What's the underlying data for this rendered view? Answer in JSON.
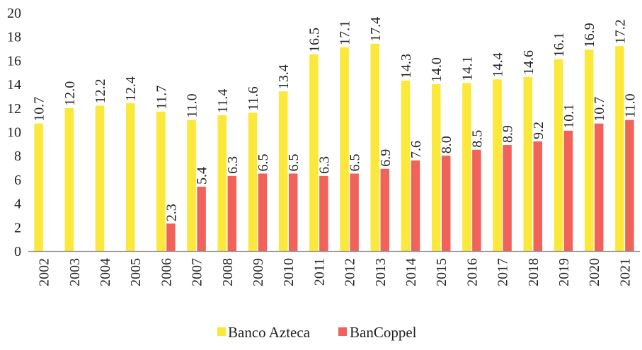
{
  "chart_data": {
    "type": "bar",
    "title": "",
    "xlabel": "",
    "ylabel": "",
    "ylim": [
      0,
      20
    ],
    "yticks": [
      0,
      2,
      4,
      6,
      8,
      10,
      12,
      14,
      16,
      18,
      20
    ],
    "categories": [
      "2002",
      "2003",
      "2004",
      "2005",
      "2006",
      "2007",
      "2008",
      "2009",
      "2010",
      "2011",
      "2012",
      "2013",
      "2014",
      "2015",
      "2016",
      "2017",
      "2018",
      "2019",
      "2020",
      "2021"
    ],
    "series": [
      {
        "name": "Banco Azteca",
        "color": "#fbe83a",
        "values": [
          10.7,
          12.0,
          12.2,
          12.4,
          11.7,
          11.0,
          11.4,
          11.6,
          13.4,
          16.5,
          17.1,
          17.4,
          14.3,
          14.0,
          14.1,
          14.4,
          14.6,
          16.1,
          16.9,
          17.2
        ],
        "labels": [
          "10.7",
          "12.0",
          "12.2",
          "12.4",
          "11.7",
          "11.0",
          "11.4",
          "11.6",
          "13.4",
          "16.5",
          "17.1",
          "17.4",
          "14.3",
          "14.0",
          "14.1",
          "14.4",
          "14.6",
          "16.1",
          "16.9",
          "17.2"
        ]
      },
      {
        "name": "BanCoppel",
        "color": "#f0625a",
        "values": [
          null,
          null,
          null,
          null,
          2.3,
          5.4,
          6.3,
          6.5,
          6.5,
          6.3,
          6.5,
          6.9,
          7.6,
          8.0,
          8.5,
          8.9,
          9.2,
          10.1,
          10.7,
          11.0
        ],
        "labels": [
          null,
          null,
          null,
          null,
          "2.3",
          "5.4",
          "6.3",
          "6.5",
          "6.5",
          "6.3",
          "6.5",
          "6.9",
          "7.6",
          "8.0",
          "8.5",
          "8.9",
          "9.2",
          "10.1",
          "10.7",
          "11.0"
        ]
      }
    ],
    "legend": {
      "position": "bottom"
    },
    "grid": false
  }
}
